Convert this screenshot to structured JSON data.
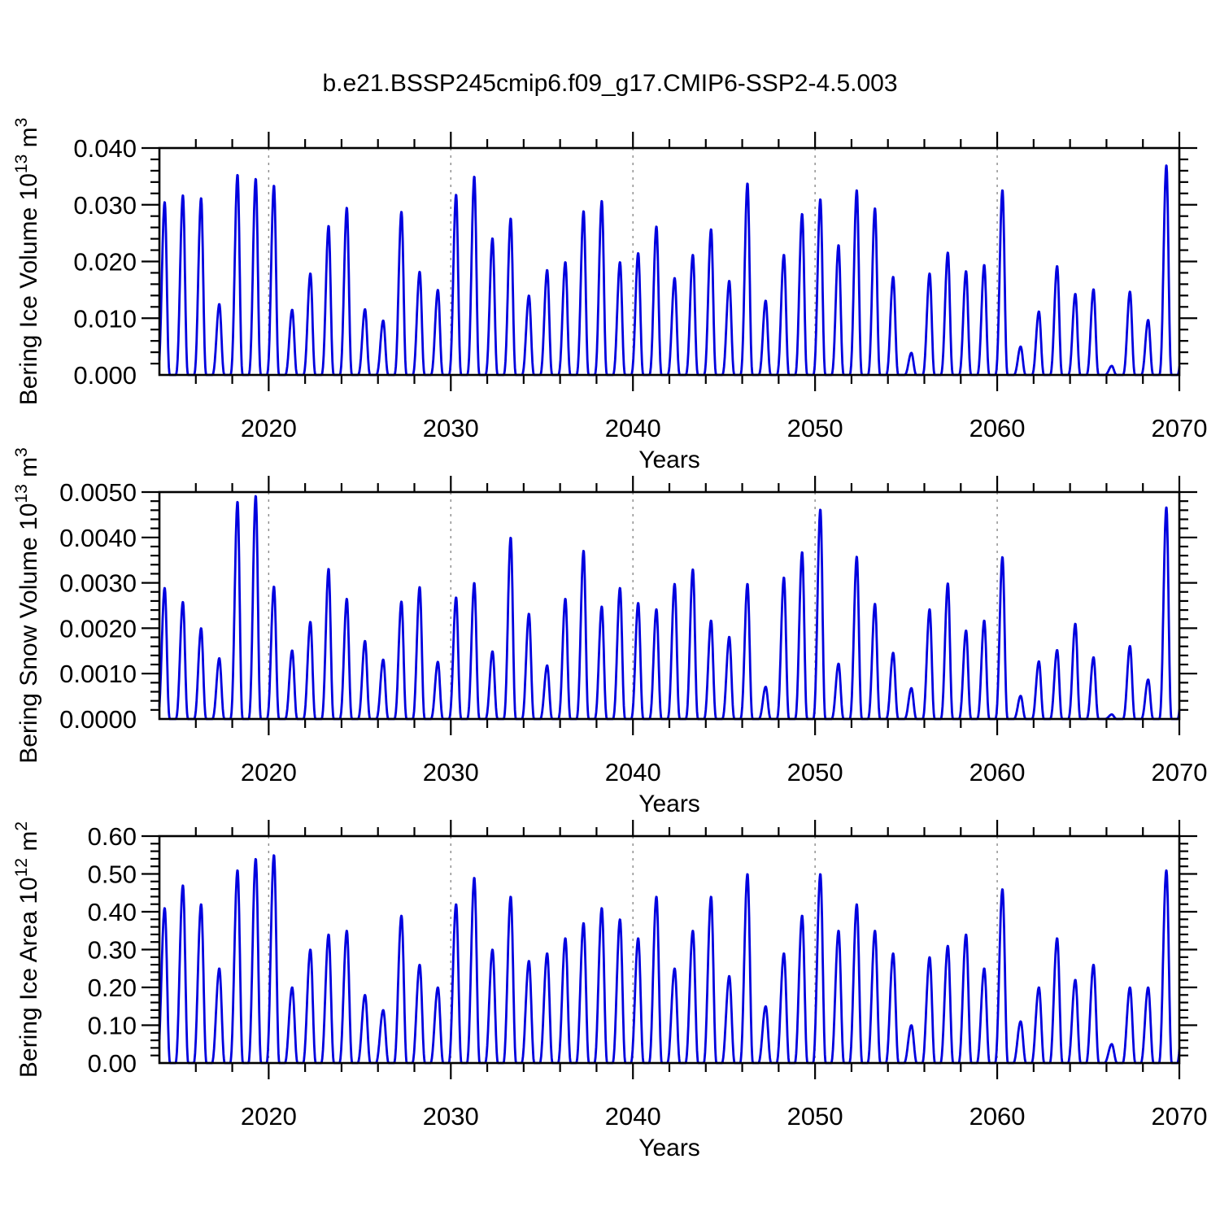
{
  "title": "b.e21.BSSP245cmip6.f09_g17.CMIP6-SSP2-4.5.003",
  "x_axis": {
    "label": "Years",
    "tick_labels": [
      "2020",
      "2030",
      "2040",
      "2050",
      "2060",
      "2070"
    ],
    "tick_years": [
      2020,
      2030,
      2040,
      2050,
      2060,
      2070
    ],
    "minor_tick_step_years": 2,
    "dashed_gridline_years": [
      2020,
      2030,
      2040,
      2050,
      2060
    ],
    "range": [
      2014,
      2070
    ]
  },
  "style": {
    "line_color": "#0000df",
    "grid_color": "#8a8a8a",
    "axis_color": "#000000",
    "background": "#ffffff"
  },
  "chart_data": [
    {
      "type": "line",
      "name": "Bering Ice Volume",
      "ylabel": {
        "main": "Bering Ice Volume 10",
        "exp": "13",
        "unit": " m",
        "unit_exp": "3"
      },
      "ylim": [
        0,
        0.04
      ],
      "ytick_step": 0.01,
      "ytick_labels": [
        "0.000",
        "0.010",
        "0.020",
        "0.030",
        "0.040"
      ],
      "peak_year_start": 2014,
      "annual_peaks": [
        0.0305,
        0.0317,
        0.0312,
        0.0125,
        0.0353,
        0.0346,
        0.0334,
        0.0115,
        0.0179,
        0.0263,
        0.0295,
        0.0116,
        0.0096,
        0.0288,
        0.0182,
        0.015,
        0.0318,
        0.035,
        0.0241,
        0.0276,
        0.014,
        0.0185,
        0.0199,
        0.0289,
        0.0307,
        0.0199,
        0.0215,
        0.0262,
        0.0171,
        0.0212,
        0.0257,
        0.0166,
        0.0338,
        0.0131,
        0.0212,
        0.0284,
        0.031,
        0.0229,
        0.0326,
        0.0294,
        0.0173,
        0.0039,
        0.0179,
        0.0216,
        0.0183,
        0.0194,
        0.0326,
        0.005,
        0.0112,
        0.0192,
        0.0143,
        0.0151,
        0.0016,
        0.0147,
        0.0097,
        0.037
      ],
      "sharpness": 1.5
    },
    {
      "type": "line",
      "name": "Bering Snow Volume",
      "ylabel": {
        "main": "Bering Snow Volume 10",
        "exp": "13",
        "unit": " m",
        "unit_exp": "3"
      },
      "ylim": [
        0,
        0.005
      ],
      "ytick_step": 0.001,
      "ytick_labels": [
        "0.0000",
        "0.0010",
        "0.0020",
        "0.0030",
        "0.0040",
        "0.0050"
      ],
      "peak_year_start": 2014,
      "annual_peaks": [
        0.00289,
        0.00258,
        0.002,
        0.00134,
        0.00479,
        0.00492,
        0.00292,
        0.00151,
        0.00214,
        0.00331,
        0.00265,
        0.00172,
        0.00131,
        0.00259,
        0.00291,
        0.00126,
        0.00268,
        0.003,
        0.00149,
        0.004,
        0.00232,
        0.00118,
        0.00265,
        0.00371,
        0.00248,
        0.00289,
        0.00256,
        0.00242,
        0.00298,
        0.0033,
        0.00217,
        0.00181,
        0.00298,
        0.00071,
        0.00312,
        0.00368,
        0.00462,
        0.00122,
        0.00358,
        0.00254,
        0.00146,
        0.00068,
        0.00242,
        0.00299,
        0.00195,
        0.00217,
        0.00357,
        0.00051,
        0.00127,
        0.00152,
        0.0021,
        0.00136,
        0.0001,
        0.00161,
        0.00087,
        0.00467
      ],
      "sharpness": 1.45
    },
    {
      "type": "line",
      "name": "Bering Ice Area",
      "ylabel": {
        "main": "Bering Ice Area 10",
        "exp": "12",
        "unit": " m",
        "unit_exp": "2"
      },
      "ylim": [
        0,
        0.6
      ],
      "ytick_step": 0.1,
      "ytick_labels": [
        "0.00",
        "0.10",
        "0.20",
        "0.30",
        "0.40",
        "0.50",
        "0.60"
      ],
      "peak_year_start": 2014,
      "annual_peaks": [
        0.41,
        0.47,
        0.42,
        0.25,
        0.51,
        0.54,
        0.55,
        0.2,
        0.3,
        0.34,
        0.35,
        0.18,
        0.14,
        0.39,
        0.26,
        0.2,
        0.42,
        0.49,
        0.3,
        0.44,
        0.27,
        0.29,
        0.33,
        0.37,
        0.41,
        0.38,
        0.33,
        0.44,
        0.25,
        0.35,
        0.44,
        0.23,
        0.5,
        0.15,
        0.29,
        0.39,
        0.5,
        0.35,
        0.42,
        0.35,
        0.29,
        0.1,
        0.28,
        0.31,
        0.34,
        0.25,
        0.46,
        0.11,
        0.2,
        0.33,
        0.22,
        0.26,
        0.05,
        0.2,
        0.2,
        0.51
      ],
      "sharpness": 1.15
    }
  ]
}
